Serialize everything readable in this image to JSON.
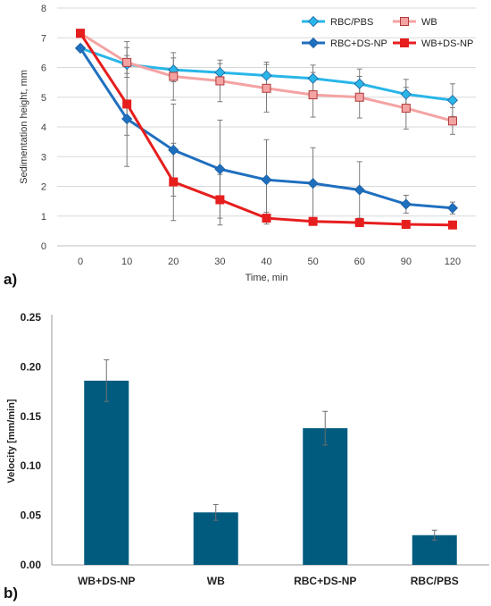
{
  "chart_data": [
    {
      "type": "line",
      "panel_label": "a)",
      "xlabel": "Time, min",
      "ylabel": "Sedimentation height, mm",
      "categories": [
        "0",
        "10",
        "20",
        "30",
        "40",
        "50",
        "60",
        "90",
        "120"
      ],
      "ylim": [
        0,
        8
      ],
      "yticks": [
        "0",
        "1",
        "2",
        "3",
        "4",
        "5",
        "6",
        "7",
        "8"
      ],
      "grid": true,
      "legend_position": "top-right",
      "series": [
        {
          "name": "RBC/PBS",
          "color": "#29b6e8",
          "marker": "diamond",
          "values": [
            6.65,
            6.1,
            5.92,
            5.83,
            5.73,
            5.63,
            5.45,
            5.1,
            4.9
          ],
          "errors": [
            0,
            0.3,
            0.4,
            0.3,
            0.45,
            0.45,
            0.5,
            0.5,
            0.55
          ]
        },
        {
          "name": "WB",
          "color": "#f4a3a3",
          "marker": "square",
          "values": [
            7.15,
            6.17,
            5.7,
            5.55,
            5.3,
            5.08,
            5.0,
            4.63,
            4.2
          ],
          "errors": [
            0,
            0.5,
            0.8,
            0.7,
            0.8,
            0.75,
            0.7,
            0.7,
            0.45
          ]
        },
        {
          "name": "RBC+DS-NP",
          "color": "#1f6fbf",
          "marker": "diamond",
          "values": [
            6.65,
            4.27,
            3.22,
            2.58,
            2.22,
            2.1,
            1.88,
            1.4,
            1.27
          ],
          "errors": [
            0,
            0.55,
            1.55,
            1.65,
            1.35,
            1.2,
            0.95,
            0.3,
            0.2
          ]
        },
        {
          "name": "WB+DS-NP",
          "color": "#e61e1e",
          "marker": "square",
          "values": [
            7.15,
            4.77,
            2.15,
            1.55,
            0.93,
            0.82,
            0.78,
            0.72,
            0.7
          ],
          "errors": [
            0,
            2.1,
            1.3,
            0.85,
            0.2,
            0.1,
            0.1,
            0.1,
            0.1
          ]
        }
      ]
    },
    {
      "type": "bar",
      "panel_label": "b)",
      "xlabel": "",
      "ylabel": "Velocity [mm/min]",
      "categories": [
        "WB+DS-NP",
        "WB",
        "RBC+DS-NP",
        "RBC/PBS"
      ],
      "values": [
        0.186,
        0.053,
        0.138,
        0.03
      ],
      "errors": [
        0.021,
        0.008,
        0.017,
        0.005
      ],
      "bar_color": "#005b7f",
      "ylim": [
        0,
        0.25
      ],
      "yticks": [
        "0.00",
        "0.05",
        "0.10",
        "0.15",
        "0.20",
        "0.25"
      ],
      "grid": false
    }
  ]
}
